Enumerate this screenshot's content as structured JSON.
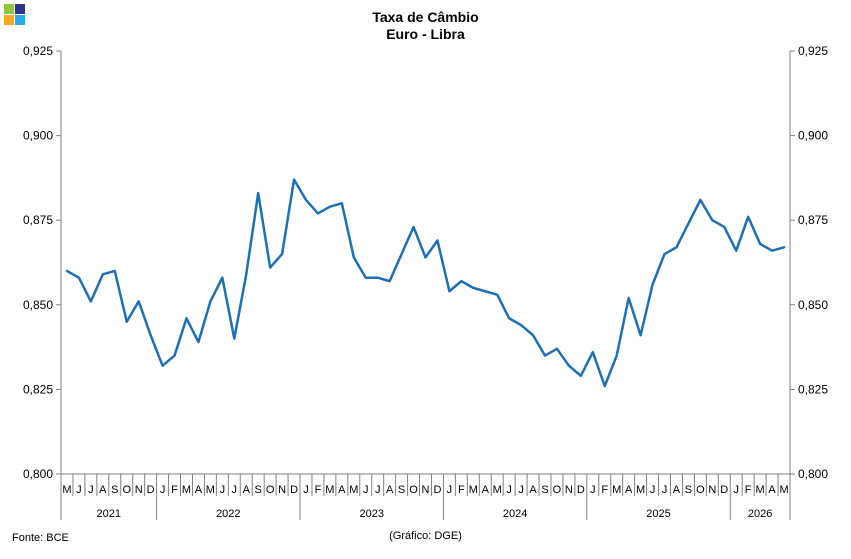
{
  "header": {
    "title_line1": "Taxa de Câmbio",
    "title_line2": "Euro - Libra"
  },
  "logo": {
    "colors": [
      "#8dc63f",
      "#2e3192",
      "#f7a823",
      "#29a9e1"
    ]
  },
  "footer": {
    "source": "Fonte: BCE",
    "credit": "(Gráfico: DGE)"
  },
  "chart_data": {
    "type": "line",
    "title": "Taxa de Câmbio Euro - Libra",
    "ylim": [
      0.8,
      0.925
    ],
    "yticks": [
      "0,800",
      "0,825",
      "0,850",
      "0,875",
      "0,900",
      "0,925"
    ],
    "ytick_values": [
      0.8,
      0.825,
      0.85,
      0.875,
      0.9,
      0.925
    ],
    "y_axis_both_sides": true,
    "grid": false,
    "line_color": "#1f6fb5",
    "month_labels": [
      "M",
      "J",
      "J",
      "A",
      "S",
      "O",
      "N",
      "D",
      "J",
      "F",
      "M",
      "A",
      "M",
      "J",
      "J",
      "A",
      "S",
      "O",
      "N",
      "D",
      "J",
      "F",
      "M",
      "A",
      "M",
      "J",
      "J",
      "A",
      "S",
      "O",
      "N",
      "D",
      "J",
      "F",
      "M",
      "A",
      "M",
      "J",
      "J",
      "A",
      "S",
      "O",
      "N",
      "D",
      "J",
      "F",
      "M",
      "A",
      "M",
      "J",
      "J",
      "A",
      "S",
      "O",
      "N",
      "D",
      "J",
      "F",
      "M",
      "A",
      "M"
    ],
    "year_groups": [
      {
        "label": "2021",
        "months": 8
      },
      {
        "label": "2022",
        "months": 12
      },
      {
        "label": "2023",
        "months": 12
      },
      {
        "label": "2024",
        "months": 12
      },
      {
        "label": "2025",
        "months": 12
      },
      {
        "label": "2026",
        "months": 5
      }
    ],
    "series": [
      {
        "values": [
          0.86,
          0.858,
          0.851,
          0.859,
          0.86,
          0.845,
          0.851,
          0.841,
          0.832,
          0.835,
          0.846,
          0.839,
          0.851,
          0.858,
          0.84,
          0.859,
          0.883,
          0.861,
          0.865,
          0.887,
          0.881,
          0.877,
          0.879,
          0.88,
          0.864,
          0.858,
          0.858,
          0.857,
          0.865,
          0.873,
          0.864,
          0.869,
          0.854,
          0.857,
          0.855,
          0.854,
          0.853,
          0.846,
          0.844,
          0.841,
          0.835,
          0.837,
          0.832,
          0.829,
          0.836,
          0.826,
          0.835,
          0.852,
          0.841,
          0.856,
          0.865,
          0.867,
          0.874,
          0.881,
          0.875,
          0.873,
          0.866,
          0.876,
          0.868,
          0.866,
          0.867
        ]
      }
    ]
  }
}
